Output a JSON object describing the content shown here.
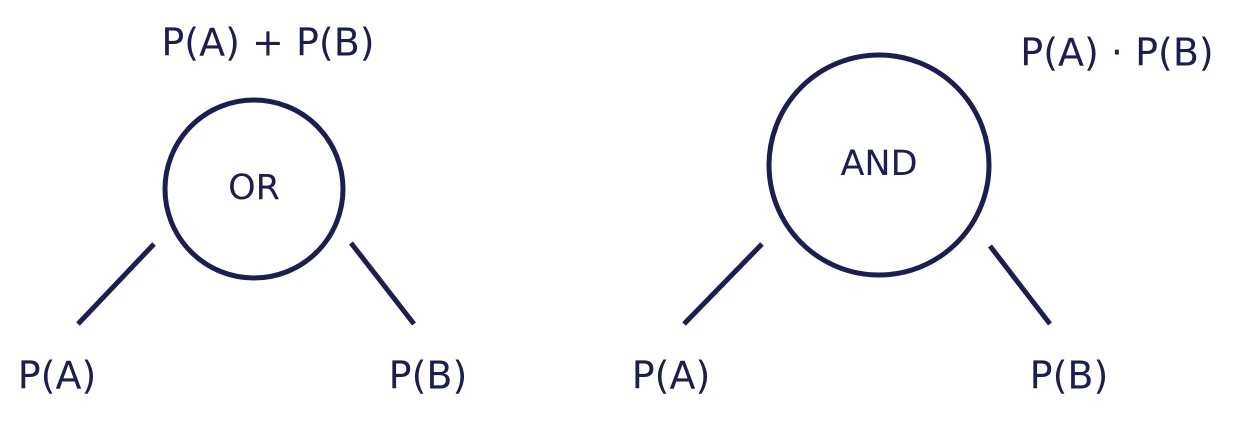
{
  "colors": {
    "ink": "#1b1e4e",
    "background": "#ffffff"
  },
  "diagrams": [
    {
      "id": "or",
      "formula": "P(A) + P(B)",
      "node_label": "OR",
      "left_leaf": "P(A)",
      "right_leaf": "P(B)"
    },
    {
      "id": "and",
      "formula": "P(A) · P(B)",
      "node_label": "AND",
      "left_leaf": "P(A)",
      "right_leaf": "P(B)"
    }
  ]
}
